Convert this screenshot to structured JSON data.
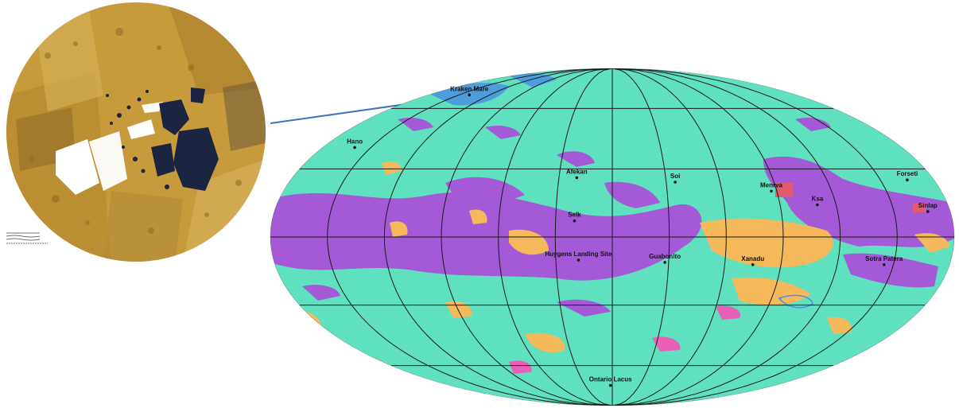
{
  "polar_inset": {
    "name": "north-polar-mosaic",
    "colors": {
      "terrain": "#c79a3c",
      "terrain_dark": "#9c7426",
      "terrain_light": "#dcb866",
      "lakes": "#1b2440",
      "no_data": "#ffffff"
    }
  },
  "connector": {
    "color": "#3e6fc4"
  },
  "global_map": {
    "projection": "Mollweide",
    "graticule": "on",
    "colors": {
      "plains": "#5fe0bf",
      "hummocky": "#a45ad6",
      "dunes": "#f5b85a",
      "labyrinth": "#ea5fb8",
      "crater": "#e15a6e",
      "lakes": "#4a90e2",
      "graticule": "#1a1a1a"
    },
    "features": [
      {
        "key": "kraken",
        "label": "Kraken Mare",
        "lon": -140,
        "lat": 68
      },
      {
        "key": "hano",
        "label": "Hano",
        "lon": -160,
        "lat": 40
      },
      {
        "key": "afekan",
        "label": "Afekan",
        "lon": -20,
        "lat": 26
      },
      {
        "key": "soi",
        "label": "Soi",
        "lon": 35,
        "lat": 24
      },
      {
        "key": "menrva",
        "label": "Menrva",
        "lon": 87,
        "lat": 20
      },
      {
        "key": "forseti",
        "label": "Forseti",
        "lon": 165,
        "lat": 25
      },
      {
        "key": "ksa",
        "label": "Ksa",
        "lon": 110,
        "lat": 14
      },
      {
        "key": "sinlap",
        "label": "Sinlap",
        "lon": 168,
        "lat": 11
      },
      {
        "key": "selk",
        "label": "Selk",
        "lon": -20,
        "lat": 7
      },
      {
        "key": "huygens",
        "label": "Huygens Landing Site",
        "lon": -18,
        "lat": -10
      },
      {
        "key": "guabonito",
        "label": "Guabonito",
        "lon": 28,
        "lat": -11
      },
      {
        "key": "xanadu",
        "label": "Xanadu",
        "lon": 75,
        "lat": -12
      },
      {
        "key": "sotra",
        "label": "Sotra Patera",
        "lon": 145,
        "lat": -12
      },
      {
        "key": "ontario",
        "label": "Ontario Lacus",
        "lon": -2,
        "lat": -72
      }
    ]
  }
}
